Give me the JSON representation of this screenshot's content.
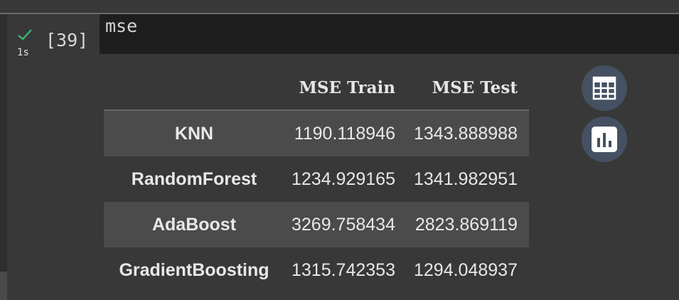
{
  "cell": {
    "status_icon": "check-icon",
    "exec_time": "1s",
    "exec_count": "[39]",
    "code": "mse"
  },
  "output": {
    "columns": [
      "MSE Train",
      "MSE Test"
    ],
    "rows": [
      {
        "index": "KNN",
        "values": [
          "1190.118946",
          "1343.888988"
        ]
      },
      {
        "index": "RandomForest",
        "values": [
          "1234.929165",
          "1341.982951"
        ]
      },
      {
        "index": "AdaBoost",
        "values": [
          "3269.758434",
          "2823.869119"
        ]
      },
      {
        "index": "GradientBoosting",
        "values": [
          "1315.742353",
          "1294.048937"
        ]
      }
    ],
    "tools": [
      {
        "icon": "table-icon"
      },
      {
        "icon": "bar-chart-icon"
      }
    ]
  },
  "colors": {
    "background": "#383838",
    "code_background": "#1e1e1e",
    "stripe": "#4b4b4b",
    "success_check": "#3cb371",
    "tool_button": "#455162"
  }
}
